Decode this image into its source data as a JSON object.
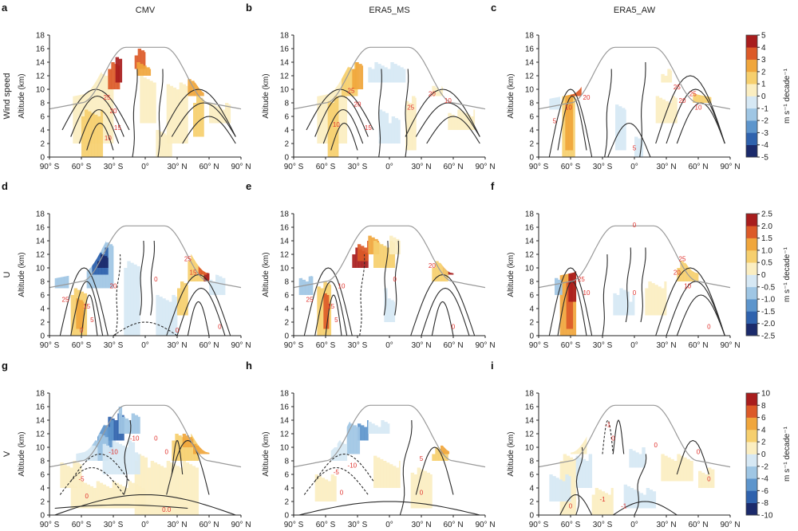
{
  "figure": {
    "column_titles": [
      "CMV",
      "ERA5_MS",
      "ERA5_AW"
    ],
    "row_labels": [
      "Wind speed",
      "U",
      "V"
    ],
    "y_axis_label": "Altitude (km)",
    "colorbar_unit": "m s⁻¹ decade⁻¹",
    "colors": {
      "contour": "#2b2b2b",
      "contour_label": "#e0322d",
      "tropopause": "#9a9a9a"
    }
  },
  "chart_data": [
    {
      "type": "heatmap",
      "panel": "a",
      "row": "Wind speed",
      "column": "CMV",
      "xlabel": "",
      "ylabel": "Altitude (km)",
      "x_ticks": [
        "90° S",
        "60° S",
        "30° S",
        "0°",
        "30° N",
        "60° N",
        "90° N"
      ],
      "y_ticks": [
        "0",
        "2",
        "4",
        "6",
        "8",
        "10",
        "12",
        "14",
        "16",
        "18"
      ],
      "ylim": [
        0,
        18
      ],
      "contour_labels": [
        "25",
        "20",
        "15",
        "10"
      ]
    },
    {
      "type": "heatmap",
      "panel": "b",
      "row": "Wind speed",
      "column": "ERA5_MS",
      "xlabel": "",
      "ylabel": "Altitude (km)",
      "x_ticks": [
        "90° S",
        "60° S",
        "30° S",
        "0°",
        "30° N",
        "60° N",
        "90° N"
      ],
      "y_ticks": [
        "0",
        "2",
        "4",
        "6",
        "8",
        "10",
        "12",
        "14",
        "16",
        "18"
      ],
      "ylim": [
        0,
        18
      ],
      "contour_labels": [
        "25",
        "20",
        "10",
        "15",
        "25",
        "20",
        "10"
      ]
    },
    {
      "type": "heatmap",
      "panel": "c",
      "row": "Wind speed",
      "column": "ERA5_AW",
      "xlabel": "",
      "ylabel": "Altitude (km)",
      "x_ticks": [
        "90° S",
        "60° S",
        "30° S",
        "0°",
        "30° N",
        "60° N",
        "90° N"
      ],
      "y_ticks": [
        "0",
        "2",
        "4",
        "6",
        "8",
        "10",
        "12",
        "14",
        "16",
        "18"
      ],
      "ylim": [
        0,
        18
      ],
      "contour_labels": [
        "10",
        "20",
        "25",
        "25",
        "20",
        "10",
        "5",
        "5"
      ]
    },
    {
      "type": "heatmap",
      "panel": "d",
      "row": "U",
      "column": "CMV",
      "xlabel": "",
      "ylabel": "Altitude (km)",
      "x_ticks": [
        "90° S",
        "60° S",
        "30° S",
        "0°",
        "30° N",
        "60° N",
        "90° N"
      ],
      "y_ticks": [
        "0",
        "2",
        "4",
        "6",
        "8",
        "10",
        "12",
        "14",
        "16",
        "18"
      ],
      "ylim": [
        0,
        18
      ],
      "contour_labels": [
        "25",
        "15",
        "5",
        "0",
        "20",
        "25",
        "15",
        "0",
        "0",
        "0"
      ]
    },
    {
      "type": "heatmap",
      "panel": "e",
      "row": "U",
      "column": "ERA5_MS",
      "xlabel": "",
      "ylabel": "Altitude (km)",
      "x_ticks": [
        "90° S",
        "60° S",
        "30° S",
        "0°",
        "30° N",
        "60° N",
        "90° N"
      ],
      "y_ticks": [
        "0",
        "2",
        "4",
        "6",
        "8",
        "10",
        "12",
        "14",
        "16",
        "18"
      ],
      "ylim": [
        0,
        18
      ],
      "contour_labels": [
        "25",
        "15",
        "5",
        "10",
        "0",
        "20",
        "0"
      ]
    },
    {
      "type": "heatmap",
      "panel": "f",
      "row": "U",
      "column": "ERA5_AW",
      "xlabel": "",
      "ylabel": "Altitude (km)",
      "x_ticks": [
        "90° S",
        "60° S",
        "30° S",
        "0°",
        "30° N",
        "60° N",
        "90° N"
      ],
      "y_ticks": [
        "0",
        "2",
        "4",
        "6",
        "8",
        "10",
        "12",
        "14",
        "16",
        "18"
      ],
      "ylim": [
        0,
        18
      ],
      "contour_labels": [
        "0",
        "25",
        "10",
        "20",
        "25",
        "10",
        "0",
        "0"
      ]
    },
    {
      "type": "heatmap",
      "panel": "g",
      "row": "V",
      "column": "CMV",
      "xlabel": "",
      "ylabel": "Altitude (km)",
      "x_ticks": [
        "90° S",
        "60° S",
        "30° S",
        "0°",
        "30° N",
        "60° N",
        "90° N"
      ],
      "y_ticks": [
        "0",
        "2",
        "4",
        "6",
        "8",
        "10",
        "12",
        "14",
        "16",
        "18"
      ],
      "ylim": [
        0,
        18
      ],
      "contour_labels": [
        "-10",
        "0",
        "0",
        "-5",
        "0",
        "-10",
        "0.0"
      ]
    },
    {
      "type": "heatmap",
      "panel": "h",
      "row": "V",
      "column": "ERA5_MS",
      "xlabel": "",
      "ylabel": "Altitude (km)",
      "x_ticks": [
        "90° S",
        "60° S",
        "30° S",
        "0°",
        "30° N",
        "60° N",
        "90° N"
      ],
      "y_ticks": [
        "0",
        "2",
        "4",
        "6",
        "8",
        "10",
        "12",
        "14",
        "16",
        "18"
      ],
      "ylim": [
        0,
        18
      ],
      "contour_labels": [
        "-10",
        "-5",
        "0",
        "5",
        "0"
      ]
    },
    {
      "type": "heatmap",
      "panel": "i",
      "row": "V",
      "column": "ERA5_AW",
      "xlabel": "",
      "ylabel": "Altitude (km)",
      "x_ticks": [
        "90° S",
        "60° S",
        "30° S",
        "0°",
        "30° N",
        "60° N",
        "90° N"
      ],
      "y_ticks": [
        "0",
        "2",
        "4",
        "6",
        "8",
        "10",
        "12",
        "14",
        "16",
        "18"
      ],
      "ylim": [
        0,
        18
      ],
      "contour_labels": [
        "-1",
        "0",
        "0",
        "0",
        "-1",
        "-1",
        "0",
        "0"
      ]
    }
  ],
  "colorbars": [
    {
      "row": "Wind speed",
      "ticks": [
        "5",
        "4",
        "3",
        "2",
        "1",
        "0",
        "-1",
        "-2",
        "-3",
        "-4",
        "-5"
      ],
      "range": [
        -5,
        5
      ]
    },
    {
      "row": "U",
      "ticks": [
        "2.5",
        "2.0",
        "1.5",
        "1.0",
        "0.5",
        "0",
        "-0.5",
        "-1.0",
        "-1.5",
        "-2.0",
        "-2.5"
      ],
      "range": [
        -2.5,
        2.5
      ]
    },
    {
      "row": "V",
      "ticks": [
        "10",
        "8",
        "6",
        "4",
        "2",
        "0",
        "-2",
        "-4",
        "-6",
        "-8",
        "-10"
      ],
      "range": [
        -10,
        10
      ]
    }
  ]
}
